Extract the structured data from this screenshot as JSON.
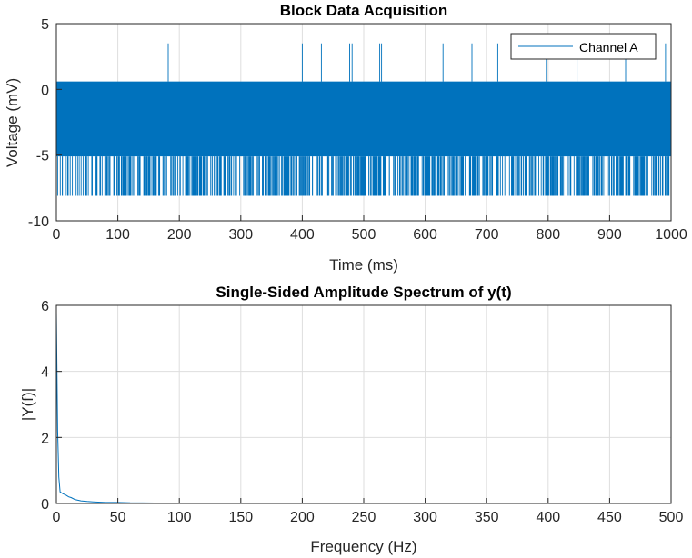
{
  "chart_data": [
    {
      "type": "line",
      "title": "Block Data Acquisition",
      "xlabel": "Time (ms)",
      "ylabel": "Voltage (mV)",
      "xlim": [
        0,
        1000
      ],
      "ylim": [
        -10,
        5
      ],
      "xticks": [
        0,
        100,
        200,
        300,
        400,
        500,
        600,
        700,
        800,
        900,
        1000
      ],
      "yticks": [
        -10,
        -5,
        0,
        5
      ],
      "grid": true,
      "legend": "top-right",
      "series": [
        {
          "name": "Channel A",
          "color": "#0072BD",
          "band": [
            -5.1,
            0.6
          ],
          "negative_spike_level": -8.1,
          "positive_spike_level": 3.5,
          "positive_spike_times_ms": [
            182,
            400,
            431,
            477,
            481,
            526,
            529,
            629,
            676,
            718,
            797,
            847,
            926,
            991
          ]
        }
      ]
    },
    {
      "type": "line",
      "title": "Single-Sided Amplitude Spectrum of y(t)",
      "xlabel": "Frequency (Hz)",
      "ylabel": "|Y(f)|",
      "xlim": [
        0,
        500
      ],
      "ylim": [
        0,
        6
      ],
      "xticks": [
        0,
        50,
        100,
        150,
        200,
        250,
        300,
        350,
        400,
        450,
        500
      ],
      "yticks": [
        0,
        2,
        4,
        6
      ],
      "grid": true,
      "series": [
        {
          "color": "#0072BD",
          "x": [
            0,
            1,
            2,
            3,
            5,
            8,
            10,
            12,
            15,
            20,
            25,
            30,
            40,
            50,
            60,
            80,
            100,
            150,
            200,
            300,
            400,
            500
          ],
          "y": [
            5.8,
            2.2,
            0.8,
            0.35,
            0.3,
            0.25,
            0.2,
            0.18,
            0.12,
            0.08,
            0.06,
            0.05,
            0.03,
            0.03,
            0.02,
            0.015,
            0.01,
            0.01,
            0.01,
            0.005,
            0.005,
            0.005
          ]
        }
      ]
    }
  ]
}
